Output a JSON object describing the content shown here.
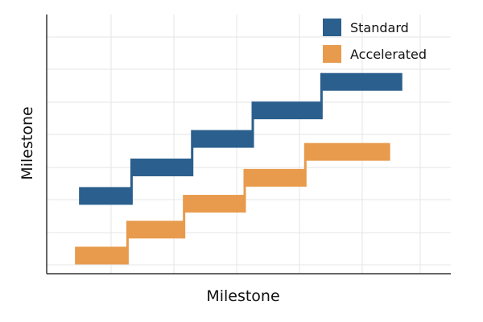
{
  "chart_data": {
    "type": "bar",
    "title": "",
    "xlabel": "Milestone",
    "ylabel": "Milestone",
    "xlim": [
      0,
      10
    ],
    "ylim": [
      0,
      10
    ],
    "grid": true,
    "legend_position": "top-right",
    "series": [
      {
        "name": "Standard",
        "color": "#2b5f8e",
        "steps": [
          {
            "start": 0.8,
            "end": 2.1,
            "value": 3.0
          },
          {
            "start": 2.1,
            "end": 3.6,
            "value": 4.1
          },
          {
            "start": 3.6,
            "end": 5.1,
            "value": 5.2
          },
          {
            "start": 5.1,
            "end": 6.8,
            "value": 6.3
          },
          {
            "start": 6.8,
            "end": 8.8,
            "value": 7.4
          }
        ]
      },
      {
        "name": "Accelerated",
        "color": "#e89b4c",
        "steps": [
          {
            "start": 0.7,
            "end": 2.0,
            "value": 0.7
          },
          {
            "start": 2.0,
            "end": 3.4,
            "value": 1.7
          },
          {
            "start": 3.4,
            "end": 4.9,
            "value": 2.7
          },
          {
            "start": 4.9,
            "end": 6.4,
            "value": 3.7
          },
          {
            "start": 6.4,
            "end": 8.5,
            "value": 4.7
          }
        ]
      }
    ]
  }
}
